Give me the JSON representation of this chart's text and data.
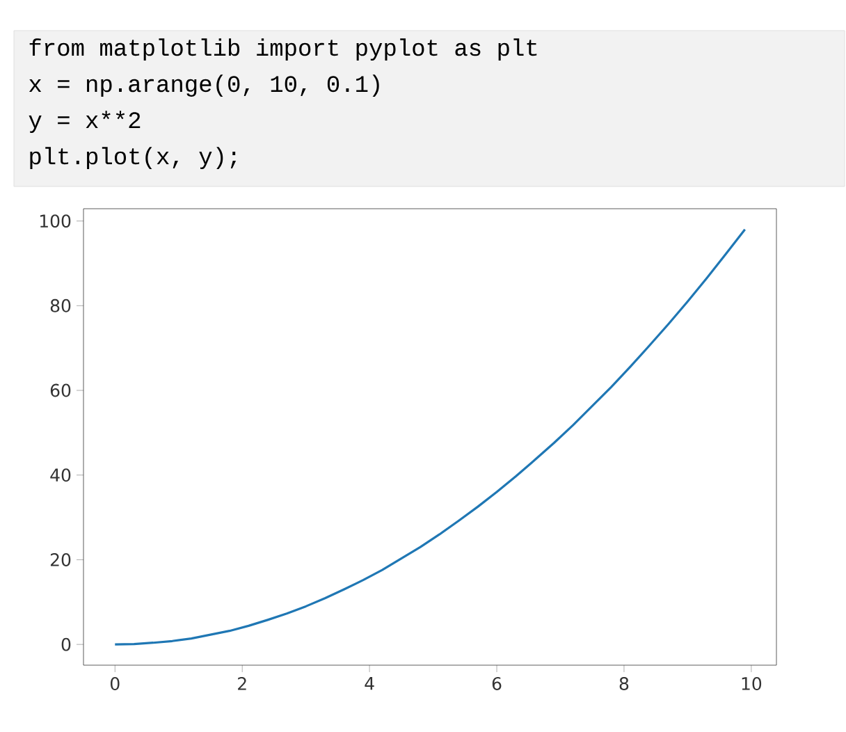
{
  "chart_data": {
    "type": "line",
    "annotations": [
      "from matplotlib import pyplot as plt",
      "x = np.arange(0, 10, 0.1)",
      "y = x**2",
      "plt.plot(x, y);"
    ],
    "x": [
      0,
      0.3,
      0.6,
      0.9,
      1.2,
      1.5,
      1.8,
      2.1,
      2.4,
      2.7,
      3.0,
      3.3,
      3.6,
      3.9,
      4.2,
      4.5,
      4.8,
      5.1,
      5.4,
      5.7,
      6.0,
      6.3,
      6.6,
      6.9,
      7.2,
      7.5,
      7.8,
      8.1,
      8.4,
      8.7,
      9.0,
      9.3,
      9.6,
      9.9
    ],
    "series": [
      {
        "color": "#1f77b4",
        "values": [
          0,
          0.1,
          0.4,
          0.8,
          1.4,
          2.3,
          3.2,
          4.4,
          5.8,
          7.3,
          9,
          10.9,
          13,
          15.2,
          17.6,
          20.3,
          23,
          26,
          29.2,
          32.5,
          36,
          39.7,
          43.6,
          47.6,
          51.8,
          56.3,
          60.8,
          65.6,
          70.6,
          75.7,
          81,
          86.5,
          92.2,
          98
        ]
      }
    ],
    "xlim": [
      -0.495,
      10.395
    ],
    "ylim": [
      -4.9,
      102.9
    ],
    "xticks": [
      0,
      2,
      4,
      6,
      8,
      10
    ],
    "yticks": [
      0,
      20,
      40,
      60,
      80,
      100
    ],
    "grid": false,
    "marker": "none",
    "line_style": "solid"
  }
}
